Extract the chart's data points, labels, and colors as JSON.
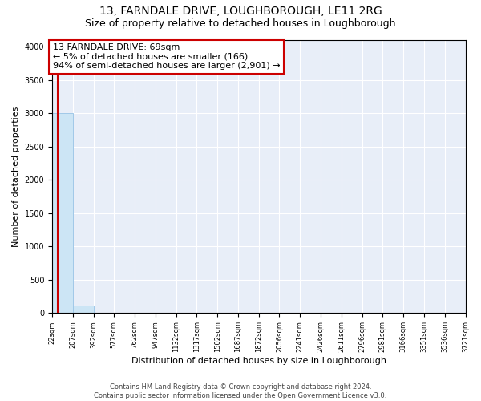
{
  "title": "13, FARNDALE DRIVE, LOUGHBOROUGH, LE11 2RG",
  "subtitle": "Size of property relative to detached houses in Loughborough",
  "xlabel": "Distribution of detached houses by size in Loughborough",
  "ylabel": "Number of detached properties",
  "footer_line1": "Contains HM Land Registry data © Crown copyright and database right 2024.",
  "footer_line2": "Contains public sector information licensed under the Open Government Licence v3.0.",
  "annotation_line1": "13 FARNDALE DRIVE: 69sqm",
  "annotation_line2": "← 5% of detached houses are smaller (166)",
  "annotation_line3": "94% of semi-detached houses are larger (2,901) →",
  "bar_color": "#cce5f5",
  "bar_edge_color": "#a0c8e8",
  "annotation_box_edgecolor": "#cc0000",
  "property_line_color": "#cc0000",
  "background_color": "#e8eef8",
  "ylim": [
    0,
    4100
  ],
  "yticks": [
    0,
    500,
    1000,
    1500,
    2000,
    2500,
    3000,
    3500,
    4000
  ],
  "bin_edges": [
    22,
    207,
    392,
    577,
    762,
    947,
    1132,
    1317,
    1502,
    1687,
    1872,
    2056,
    2241,
    2426,
    2611,
    2796,
    2981,
    3166,
    3351,
    3536,
    3721
  ],
  "bin_labels": [
    "22sqm",
    "207sqm",
    "392sqm",
    "577sqm",
    "762sqm",
    "947sqm",
    "1132sqm",
    "1317sqm",
    "1502sqm",
    "1687sqm",
    "1872sqm",
    "2056sqm",
    "2241sqm",
    "2426sqm",
    "2611sqm",
    "2796sqm",
    "2981sqm",
    "3166sqm",
    "3351sqm",
    "3536sqm",
    "3721sqm"
  ],
  "bar_heights": [
    3000,
    110,
    5,
    3,
    2,
    2,
    1,
    1,
    1,
    1,
    1,
    1,
    1,
    1,
    1,
    1,
    1,
    1,
    1,
    1
  ],
  "property_size": 69,
  "title_fontsize": 10,
  "subtitle_fontsize": 9,
  "ylabel_fontsize": 8,
  "xlabel_fontsize": 8,
  "tick_fontsize": 7,
  "annot_fontsize": 8
}
